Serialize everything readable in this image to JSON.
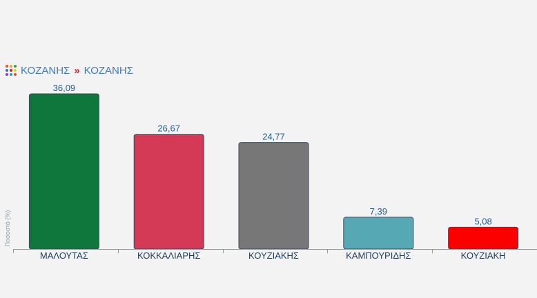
{
  "breadcrumb": {
    "items": [
      "ΚΟΖΑΝΗΣ",
      "ΚΟΖΑΝΗΣ"
    ],
    "separator": "»",
    "logo_icon": "colored-dots-logo-icon"
  },
  "chart_data": {
    "type": "bar",
    "title": "",
    "xlabel": "",
    "ylabel": "Ποσοστό (%)",
    "ylim": [
      0,
      40
    ],
    "grid": false,
    "categories": [
      "ΜΑΛΟΥΤΑΣ",
      "ΚΟΚΚΑΛΙΑΡΗΣ",
      "ΚΟΥΖΙΑΚΗΣ",
      "ΚΑΜΠΟΥΡΙΔΗΣ",
      "ΚΟΥΖΙΑΚΗ"
    ],
    "values": [
      36.09,
      26.67,
      24.77,
      7.39,
      5.08
    ],
    "value_labels": [
      "36,09",
      "26,67",
      "24,77",
      "7,39",
      "5,08"
    ],
    "colors": [
      "#0f773c",
      "#d43955",
      "#777777",
      "#56a8b4",
      "#fc0000"
    ]
  }
}
